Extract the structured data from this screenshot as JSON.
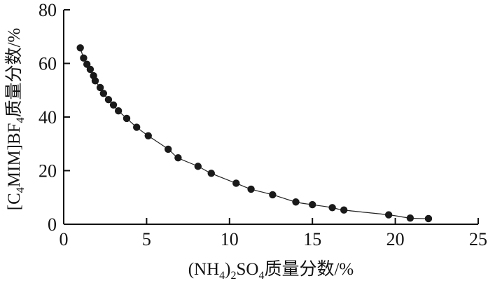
{
  "chart_data": {
    "type": "scatter",
    "title": "",
    "xlabel_parts": [
      {
        "t": "(NH"
      },
      {
        "t": "4",
        "sub": true
      },
      {
        "t": ")"
      },
      {
        "t": "2",
        "sub": true
      },
      {
        "t": "SO"
      },
      {
        "t": "4",
        "sub": true
      },
      {
        "t": "质量分数/%"
      }
    ],
    "ylabel_parts": [
      {
        "t": "[C"
      },
      {
        "t": "4",
        "sub": true
      },
      {
        "t": "MIM]BF"
      },
      {
        "t": "4",
        "sub": true
      },
      {
        "t": "质量分数/%"
      }
    ],
    "xlim": [
      0,
      25
    ],
    "ylim": [
      0,
      80
    ],
    "xticks": [
      0,
      5,
      10,
      15,
      20,
      25
    ],
    "yticks": [
      0,
      20,
      40,
      60,
      80
    ],
    "grid": false,
    "legend": "none",
    "has_fit_curve": true,
    "series": [
      {
        "points": [
          [
            1.0,
            65.8
          ],
          [
            1.2,
            62.0
          ],
          [
            1.4,
            59.7
          ],
          [
            1.6,
            57.8
          ],
          [
            1.8,
            55.4
          ],
          [
            1.9,
            53.5
          ],
          [
            2.2,
            51.0
          ],
          [
            2.4,
            48.8
          ],
          [
            2.7,
            46.5
          ],
          [
            3.0,
            44.5
          ],
          [
            3.3,
            42.3
          ],
          [
            3.8,
            39.5
          ],
          [
            4.4,
            36.2
          ],
          [
            5.1,
            33.0
          ],
          [
            6.3,
            28.0
          ],
          [
            6.9,
            24.8
          ],
          [
            8.1,
            21.6
          ],
          [
            8.9,
            19.0
          ],
          [
            10.4,
            15.3
          ],
          [
            11.3,
            13.1
          ],
          [
            12.6,
            11.0
          ],
          [
            14.0,
            8.3
          ],
          [
            15.0,
            7.3
          ],
          [
            16.2,
            6.2
          ],
          [
            16.9,
            5.3
          ],
          [
            19.6,
            3.5
          ],
          [
            20.9,
            2.3
          ],
          [
            22.0,
            2.1
          ]
        ]
      }
    ]
  }
}
